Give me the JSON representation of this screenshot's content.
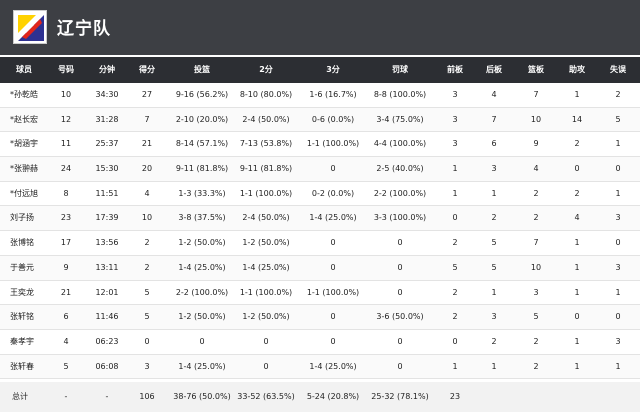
{
  "team": {
    "name": "辽宁队"
  },
  "columns": [
    "球员",
    "号码",
    "分钟",
    "得分",
    "投篮",
    "2分",
    "3分",
    "罚球",
    "前板",
    "后板",
    "篮板",
    "助攻",
    "失误"
  ],
  "players": [
    [
      "*孙乾皓",
      "10",
      "34:30",
      "27",
      "9-16 (56.2%)",
      "8-10 (80.0%)",
      "1-6 (16.7%)",
      "8-8 (100.0%)",
      "3",
      "4",
      "7",
      "1",
      "2"
    ],
    [
      "*赵长宏",
      "12",
      "31:28",
      "7",
      "2-10 (20.0%)",
      "2-4 (50.0%)",
      "0-6 (0.0%)",
      "3-4 (75.0%)",
      "3",
      "7",
      "10",
      "14",
      "5"
    ],
    [
      "*胡涵宇",
      "11",
      "25:37",
      "21",
      "8-14 (57.1%)",
      "7-13 (53.8%)",
      "1-1 (100.0%)",
      "4-4 (100.0%)",
      "3",
      "6",
      "9",
      "2",
      "1"
    ],
    [
      "*张翀赫",
      "24",
      "15:30",
      "20",
      "9-11 (81.8%)",
      "9-11 (81.8%)",
      "0",
      "2-5 (40.0%)",
      "1",
      "3",
      "4",
      "0",
      "0"
    ],
    [
      "*付远旭",
      "8",
      "11:51",
      "4",
      "1-3 (33.3%)",
      "1-1 (100.0%)",
      "0-2 (0.0%)",
      "2-2 (100.0%)",
      "1",
      "1",
      "2",
      "2",
      "1"
    ],
    [
      "刘子扬",
      "23",
      "17:39",
      "10",
      "3-8 (37.5%)",
      "2-4 (50.0%)",
      "1-4 (25.0%)",
      "3-3 (100.0%)",
      "0",
      "2",
      "2",
      "4",
      "3"
    ],
    [
      "张博铭",
      "17",
      "13:56",
      "2",
      "1-2 (50.0%)",
      "1-2 (50.0%)",
      "0",
      "0",
      "2",
      "5",
      "7",
      "1",
      "0"
    ],
    [
      "于善元",
      "9",
      "13:11",
      "2",
      "1-4 (25.0%)",
      "1-4 (25.0%)",
      "0",
      "0",
      "5",
      "5",
      "10",
      "1",
      "3"
    ],
    [
      "王奕龙",
      "21",
      "12:01",
      "5",
      "2-2 (100.0%)",
      "1-1 (100.0%)",
      "1-1 (100.0%)",
      "0",
      "2",
      "1",
      "3",
      "1",
      "1"
    ],
    [
      "张轩铭",
      "6",
      "11:46",
      "5",
      "1-2 (50.0%)",
      "1-2 (50.0%)",
      "0",
      "3-6 (50.0%)",
      "2",
      "3",
      "5",
      "0",
      "0"
    ],
    [
      "秦孝宇",
      "4",
      "06:23",
      "0",
      "0",
      "0",
      "0",
      "0",
      "0",
      "2",
      "2",
      "1",
      "3"
    ],
    [
      "张轩春",
      "5",
      "06:08",
      "3",
      "1-4 (25.0%)",
      "0",
      "1-4 (25.0%)",
      "0",
      "1",
      "1",
      "2",
      "1",
      "1"
    ]
  ],
  "totals": [
    "总计",
    "-",
    "-",
    "106",
    "38-76 (50.0%)",
    "33-52 (63.5%)",
    "5-24 (20.8%)",
    "25-32 (78.1%)",
    "23",
    "",
    "",
    "",
    ""
  ]
}
